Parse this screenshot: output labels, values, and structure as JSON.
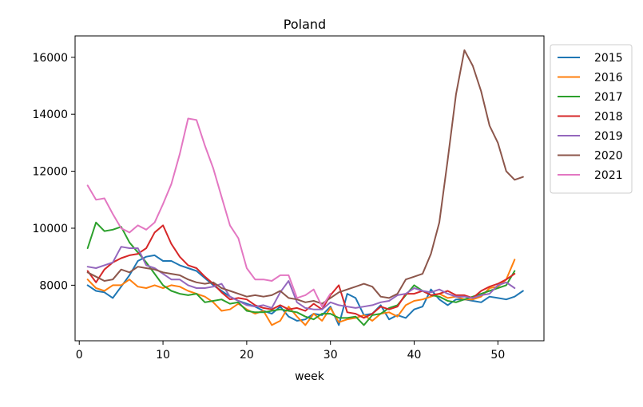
{
  "chart_data": {
    "type": "line",
    "title": "Poland",
    "xlabel": "week",
    "ylabel": "",
    "xlim": [
      -0.5,
      55.5
    ],
    "ylim": [
      6050,
      16750
    ],
    "xticks": [
      0,
      10,
      20,
      30,
      40,
      50
    ],
    "yticks": [
      8000,
      10000,
      12000,
      14000,
      16000
    ],
    "grid": false,
    "legend_position": "outside-top-right",
    "series": [
      {
        "name": "2015",
        "color": "#1f77b4",
        "x": [
          1,
          2,
          3,
          4,
          5,
          6,
          7,
          8,
          9,
          10,
          11,
          12,
          13,
          14,
          15,
          16,
          17,
          18,
          19,
          20,
          21,
          22,
          23,
          24,
          25,
          26,
          27,
          28,
          29,
          30,
          31,
          32,
          33,
          34,
          35,
          36,
          37,
          38,
          39,
          40,
          41,
          42,
          43,
          44,
          45,
          46,
          47,
          48,
          49,
          50,
          51,
          52,
          53
        ],
        "y": [
          8000,
          7800,
          7750,
          7550,
          7950,
          8350,
          8850,
          9000,
          9050,
          8850,
          8850,
          8700,
          8600,
          8500,
          8250,
          8000,
          7800,
          7600,
          7450,
          7350,
          7250,
          7100,
          7000,
          7250,
          6900,
          6750,
          6800,
          7000,
          6950,
          7250,
          6600,
          7700,
          7550,
          6950,
          7000,
          7300,
          6800,
          6950,
          6850,
          7150,
          7250,
          7850,
          7500,
          7300,
          7500,
          7500,
          7450,
          7400,
          7600,
          7550,
          7500,
          7600,
          7800
        ]
      },
      {
        "name": "2016",
        "color": "#ff7f0e",
        "x": [
          1,
          2,
          3,
          4,
          5,
          6,
          7,
          8,
          9,
          10,
          11,
          12,
          13,
          14,
          15,
          16,
          17,
          18,
          19,
          20,
          21,
          22,
          23,
          24,
          25,
          26,
          27,
          28,
          29,
          30,
          31,
          32,
          33,
          34,
          35,
          36,
          37,
          38,
          39,
          40,
          41,
          42,
          43,
          44,
          45,
          46,
          47,
          48,
          49,
          50,
          51,
          52
        ],
        "y": [
          8200,
          7900,
          7800,
          8000,
          8000,
          8200,
          7950,
          7900,
          8000,
          7900,
          8000,
          7950,
          7800,
          7700,
          7600,
          7400,
          7100,
          7150,
          7350,
          7150,
          7000,
          7100,
          6600,
          6750,
          7250,
          6900,
          6600,
          7000,
          6750,
          7200,
          6700,
          6800,
          6850,
          6950,
          6750,
          7000,
          7050,
          6900,
          7300,
          7450,
          7500,
          7600,
          7700,
          7550,
          7600,
          7500,
          7500,
          7600,
          7900,
          7950,
          8200,
          8900
        ]
      },
      {
        "name": "2017",
        "color": "#2ca02c",
        "x": [
          1,
          2,
          3,
          4,
          5,
          6,
          7,
          8,
          9,
          10,
          11,
          12,
          13,
          14,
          15,
          16,
          17,
          18,
          19,
          20,
          21,
          22,
          23,
          24,
          25,
          26,
          27,
          28,
          29,
          30,
          31,
          32,
          33,
          34,
          35,
          36,
          37,
          38,
          39,
          40,
          41,
          42,
          43,
          44,
          45,
          46,
          47,
          48,
          49,
          50,
          51,
          52
        ],
        "y": [
          9300,
          10200,
          9900,
          9950,
          10050,
          9500,
          9150,
          8800,
          8400,
          8000,
          7800,
          7700,
          7650,
          7700,
          7400,
          7450,
          7500,
          7350,
          7400,
          7100,
          7050,
          7050,
          7100,
          7150,
          7100,
          7050,
          6900,
          6800,
          7000,
          7000,
          6850,
          6850,
          6900,
          6600,
          6950,
          7000,
          7200,
          7300,
          7650,
          8000,
          7800,
          7650,
          7600,
          7450,
          7400,
          7500,
          7600,
          7700,
          7800,
          7900,
          8000,
          8500
        ]
      },
      {
        "name": "2018",
        "color": "#d62728",
        "x": [
          1,
          2,
          3,
          4,
          5,
          6,
          7,
          8,
          9,
          10,
          11,
          12,
          13,
          14,
          15,
          16,
          17,
          18,
          19,
          20,
          21,
          22,
          23,
          24,
          25,
          26,
          27,
          28,
          29,
          30,
          31,
          32,
          33,
          34,
          35,
          36,
          37,
          38,
          39,
          40,
          41,
          42,
          43,
          44,
          45,
          46,
          47,
          48,
          49,
          50,
          51,
          52
        ],
        "y": [
          8500,
          8100,
          8550,
          8800,
          8950,
          9050,
          9100,
          9300,
          9850,
          10100,
          9450,
          9000,
          8700,
          8600,
          8300,
          8050,
          7750,
          7500,
          7550,
          7500,
          7300,
          7200,
          7150,
          7300,
          7150,
          7200,
          7100,
          7350,
          7150,
          7650,
          8000,
          7050,
          7000,
          6850,
          7000,
          7250,
          7150,
          7250,
          7700,
          7700,
          7800,
          7650,
          7700,
          7800,
          7650,
          7650,
          7550,
          7800,
          7950,
          8050,
          8200,
          8400
        ]
      },
      {
        "name": "2019",
        "color": "#9467bd",
        "x": [
          1,
          2,
          3,
          4,
          5,
          6,
          7,
          8,
          9,
          10,
          11,
          12,
          13,
          14,
          15,
          16,
          17,
          18,
          19,
          20,
          21,
          22,
          23,
          24,
          25,
          26,
          27,
          28,
          29,
          30,
          31,
          32,
          33,
          34,
          35,
          36,
          37,
          38,
          39,
          40,
          41,
          42,
          43,
          44,
          45,
          46,
          47,
          48,
          49,
          50,
          51,
          52
        ],
        "y": [
          8650,
          8600,
          8700,
          8800,
          9350,
          9300,
          9300,
          8700,
          8600,
          8400,
          8200,
          8200,
          8000,
          7900,
          7900,
          7950,
          8050,
          7600,
          7450,
          7300,
          7250,
          7300,
          7200,
          7750,
          8150,
          7400,
          7200,
          7150,
          7150,
          7400,
          7300,
          7250,
          7200,
          7250,
          7300,
          7400,
          7450,
          7650,
          7700,
          7900,
          7800,
          7750,
          7850,
          7700,
          7600,
          7600,
          7550,
          7650,
          7700,
          8000,
          8100,
          7900
        ]
      },
      {
        "name": "2020",
        "color": "#8c564b",
        "x": [
          1,
          2,
          3,
          4,
          5,
          6,
          7,
          8,
          9,
          10,
          11,
          12,
          13,
          14,
          15,
          16,
          17,
          18,
          19,
          20,
          21,
          22,
          23,
          24,
          25,
          26,
          27,
          28,
          29,
          30,
          31,
          32,
          33,
          34,
          35,
          36,
          37,
          38,
          39,
          40,
          41,
          42,
          43,
          44,
          45,
          46,
          47,
          48,
          49,
          50,
          51,
          52,
          53
        ],
        "y": [
          8450,
          8300,
          8150,
          8200,
          8550,
          8450,
          8650,
          8600,
          8550,
          8450,
          8400,
          8350,
          8200,
          8100,
          8050,
          8100,
          7900,
          7800,
          7700,
          7600,
          7650,
          7600,
          7650,
          7800,
          7550,
          7500,
          7400,
          7450,
          7350,
          7550,
          7750,
          7850,
          7950,
          8050,
          7950,
          7600,
          7550,
          7700,
          8200,
          8300,
          8400,
          9100,
          10200,
          12400,
          14700,
          16250,
          15700,
          14800,
          13600,
          13000,
          12000,
          11700,
          11800
        ]
      },
      {
        "name": "2021",
        "color": "#e377c2",
        "x": [
          1,
          2,
          3,
          4,
          5,
          6,
          7,
          8,
          9,
          10,
          11,
          12,
          13,
          14,
          15,
          16,
          17,
          18,
          19,
          20,
          21,
          22,
          23,
          24,
          25,
          26,
          27,
          28,
          29,
          30
        ],
        "y": [
          11500,
          11000,
          11050,
          10500,
          10000,
          9850,
          10100,
          9950,
          10200,
          10850,
          11550,
          12600,
          13850,
          13800,
          12900,
          12100,
          11100,
          10100,
          9650,
          8600,
          8200,
          8200,
          8150,
          8350,
          8350,
          7550,
          7650,
          7850,
          7250,
          7700
        ]
      }
    ]
  }
}
